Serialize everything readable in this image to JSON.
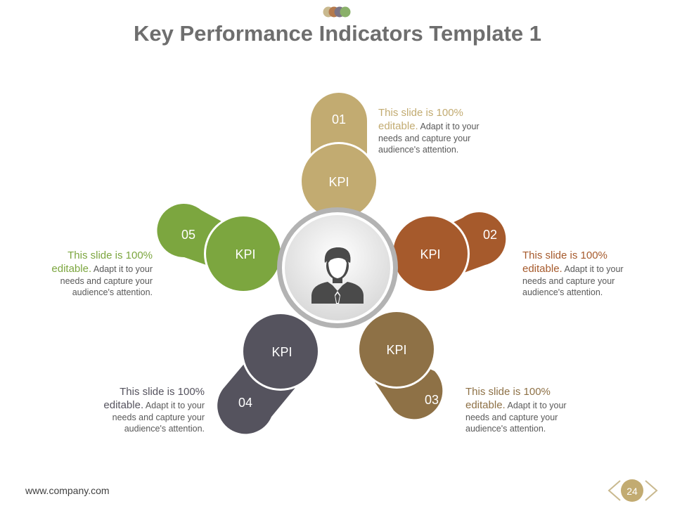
{
  "title": "Key Performance Indicators Template 1",
  "colors": {
    "tan": "#c2ab71",
    "rust": "#a65a2c",
    "brown": "#8e7146",
    "slate": "#55535e",
    "green": "#7ca63f",
    "hub_ring": "#b3b3b3",
    "title": "#6e6e6e"
  },
  "center": {
    "icon": "businessman-icon"
  },
  "items": [
    {
      "number": "01",
      "kpi": "KPI",
      "highlight": "This slide is 100% editable.",
      "text": "Adapt it to your needs and capture your audience's attention.",
      "color": "#c2ab71"
    },
    {
      "number": "02",
      "kpi": "KPI",
      "highlight": "This slide is 100% editable.",
      "text": "Adapt it to your needs and capture your audience's attention.",
      "color": "#a65a2c"
    },
    {
      "number": "03",
      "kpi": "KPI",
      "highlight": "This slide is 100% editable.",
      "text": "Adapt it to your needs and capture your audience's attention.",
      "color": "#8e7146"
    },
    {
      "number": "04",
      "kpi": "KPI",
      "highlight": "This slide is 100% editable.",
      "text": "Adapt it to your needs and capture your audience's attention.",
      "color": "#55535e"
    },
    {
      "number": "05",
      "kpi": "KPI",
      "highlight": "This slide is 100% editable.",
      "text": "Adapt it to your needs and capture your audience's attention.",
      "color": "#7ca63f"
    }
  ],
  "footer": {
    "url": "www.company.com",
    "page": "24"
  }
}
